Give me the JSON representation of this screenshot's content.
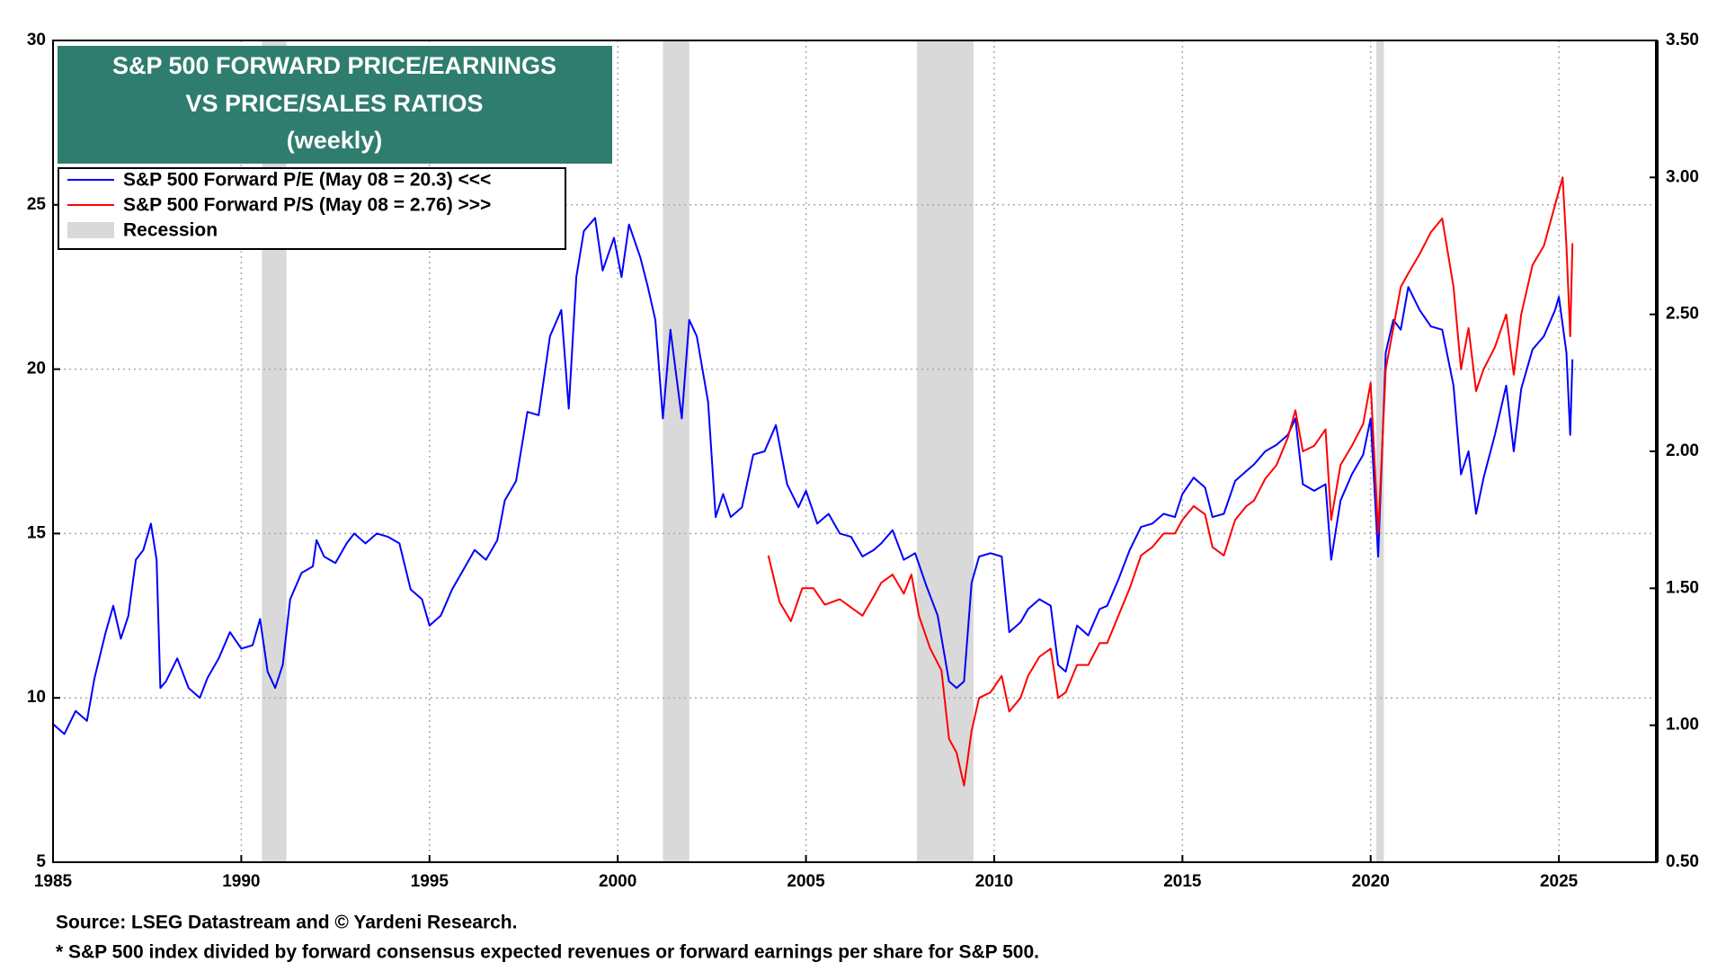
{
  "chart_data": {
    "type": "line",
    "title": [
      "S&P 500 FORWARD PRICE/EARNINGS",
      "VS PRICE/SALES RATIOS",
      "(weekly)"
    ],
    "xlim": [
      1985,
      2027.6
    ],
    "xticks": [
      1985,
      1990,
      1995,
      2000,
      2005,
      2010,
      2015,
      2020,
      2025
    ],
    "ylim": [
      5,
      30
    ],
    "yticks": [
      5,
      10,
      15,
      20,
      25,
      30
    ],
    "y2lim": [
      0.5,
      3.5
    ],
    "y2ticks": [
      {
        "value": 0.5,
        "label": "0.50"
      },
      {
        "value": 1,
        "label": "1.00"
      },
      {
        "value": 1.5,
        "label": "1.50"
      },
      {
        "value": 2,
        "label": "2.00"
      },
      {
        "value": 2.5,
        "label": "2.50"
      },
      {
        "value": 3,
        "label": "3.00"
      },
      {
        "value": 3.5,
        "label": "3.50"
      }
    ],
    "grid": true,
    "legend": "upper left",
    "series": [
      {
        "name": "S&P 500 Forward P/E (May 08 = 20.3) <<<",
        "color": "#0000ff",
        "axis": "y",
        "x": [
          1985.0,
          1985.3,
          1985.6,
          1985.9,
          1986.1,
          1986.4,
          1986.6,
          1986.8,
          1987.0,
          1987.2,
          1987.4,
          1987.6,
          1987.75,
          1987.85,
          1988.0,
          1988.3,
          1988.6,
          1988.9,
          1989.1,
          1989.4,
          1989.7,
          1990.0,
          1990.3,
          1990.5,
          1990.7,
          1990.9,
          1991.1,
          1991.3,
          1991.6,
          1991.9,
          1992.0,
          1992.2,
          1992.5,
          1992.8,
          1993.0,
          1993.3,
          1993.6,
          1993.9,
          1994.2,
          1994.5,
          1994.8,
          1995.0,
          1995.3,
          1995.6,
          1995.9,
          1996.2,
          1996.5,
          1996.8,
          1997.0,
          1997.3,
          1997.6,
          1997.9,
          1998.2,
          1998.5,
          1998.7,
          1998.9,
          1999.1,
          1999.4,
          1999.6,
          1999.9,
          2000.1,
          2000.3,
          2000.6,
          2000.8,
          2001.0,
          2001.2,
          2001.4,
          2001.7,
          2001.9,
          2002.1,
          2002.4,
          2002.6,
          2002.8,
          2003.0,
          2003.3,
          2003.6,
          2003.9,
          2004.2,
          2004.5,
          2004.8,
          2005.0,
          2005.3,
          2005.6,
          2005.9,
          2006.2,
          2006.5,
          2006.8,
          2007.0,
          2007.3,
          2007.6,
          2007.9,
          2008.2,
          2008.5,
          2008.8,
          2009.0,
          2009.2,
          2009.4,
          2009.6,
          2009.9,
          2010.2,
          2010.4,
          2010.7,
          2010.9,
          2011.2,
          2011.5,
          2011.7,
          2011.9,
          2012.2,
          2012.5,
          2012.8,
          2013.0,
          2013.3,
          2013.6,
          2013.9,
          2014.2,
          2014.5,
          2014.8,
          2015.0,
          2015.3,
          2015.6,
          2015.8,
          2016.1,
          2016.4,
          2016.7,
          2016.9,
          2017.2,
          2017.5,
          2017.8,
          2018.0,
          2018.2,
          2018.5,
          2018.8,
          2018.95,
          2019.2,
          2019.5,
          2019.8,
          2020.0,
          2020.2,
          2020.4,
          2020.6,
          2020.8,
          2021.0,
          2021.3,
          2021.6,
          2021.9,
          2022.2,
          2022.4,
          2022.6,
          2022.8,
          2023.0,
          2023.3,
          2023.6,
          2023.8,
          2024.0,
          2024.3,
          2024.6,
          2024.9,
          2025.0,
          2025.2,
          2025.3,
          2025.36
        ],
        "values": [
          9.2,
          8.9,
          9.6,
          9.3,
          10.6,
          12.0,
          12.8,
          11.8,
          12.5,
          14.2,
          14.5,
          15.3,
          14.2,
          10.3,
          10.5,
          11.2,
          10.3,
          10.0,
          10.6,
          11.2,
          12.0,
          11.5,
          11.6,
          12.4,
          10.8,
          10.3,
          11.0,
          13.0,
          13.8,
          14.0,
          14.8,
          14.3,
          14.1,
          14.7,
          15.0,
          14.7,
          15.0,
          14.9,
          14.7,
          13.3,
          13.0,
          12.2,
          12.5,
          13.3,
          13.9,
          14.5,
          14.2,
          14.8,
          16.0,
          16.6,
          18.7,
          18.6,
          21.0,
          21.8,
          18.8,
          22.8,
          24.2,
          24.6,
          23.0,
          24.0,
          22.8,
          24.4,
          23.4,
          22.5,
          21.5,
          18.5,
          21.2,
          18.5,
          21.5,
          21.0,
          19.0,
          15.5,
          16.2,
          15.5,
          15.8,
          17.4,
          17.5,
          18.3,
          16.5,
          15.8,
          16.3,
          15.3,
          15.6,
          15.0,
          14.9,
          14.3,
          14.5,
          14.7,
          15.1,
          14.2,
          14.4,
          13.4,
          12.5,
          10.5,
          10.3,
          10.5,
          13.5,
          14.3,
          14.4,
          14.3,
          12.0,
          12.3,
          12.7,
          13.0,
          12.8,
          11.0,
          10.8,
          12.2,
          11.9,
          12.7,
          12.8,
          13.6,
          14.5,
          15.2,
          15.3,
          15.6,
          15.5,
          16.2,
          16.7,
          16.4,
          15.5,
          15.6,
          16.6,
          16.9,
          17.1,
          17.5,
          17.7,
          18.0,
          18.5,
          16.5,
          16.3,
          16.5,
          14.2,
          16.0,
          16.8,
          17.4,
          18.5,
          14.3,
          20.5,
          21.5,
          21.2,
          22.5,
          21.8,
          21.3,
          21.2,
          19.5,
          16.8,
          17.5,
          15.6,
          16.7,
          18.0,
          19.5,
          17.5,
          19.4,
          20.6,
          21.0,
          21.8,
          22.2,
          20.5,
          18.0,
          20.3
        ]
      },
      {
        "name": "S&P 500 Forward P/S (May 08 = 2.76) >>>",
        "color": "#ff0000",
        "axis": "y2",
        "x": [
          2004.0,
          2004.3,
          2004.6,
          2004.9,
          2005.2,
          2005.5,
          2005.9,
          2006.2,
          2006.5,
          2006.8,
          2007.0,
          2007.3,
          2007.6,
          2007.8,
          2008.0,
          2008.3,
          2008.6,
          2008.8,
          2009.0,
          2009.2,
          2009.4,
          2009.6,
          2009.9,
          2010.2,
          2010.4,
          2010.7,
          2010.9,
          2011.2,
          2011.5,
          2011.7,
          2011.9,
          2012.2,
          2012.5,
          2012.8,
          2013.0,
          2013.3,
          2013.6,
          2013.9,
          2014.2,
          2014.5,
          2014.8,
          2015.0,
          2015.3,
          2015.6,
          2015.8,
          2016.1,
          2016.4,
          2016.7,
          2016.9,
          2017.2,
          2017.5,
          2017.8,
          2018.0,
          2018.2,
          2018.5,
          2018.8,
          2018.95,
          2019.2,
          2019.5,
          2019.8,
          2020.0,
          2020.2,
          2020.4,
          2020.6,
          2020.8,
          2021.0,
          2021.3,
          2021.6,
          2021.9,
          2022.2,
          2022.4,
          2022.6,
          2022.8,
          2023.0,
          2023.3,
          2023.6,
          2023.8,
          2024.0,
          2024.3,
          2024.6,
          2024.9,
          2025.1,
          2025.2,
          2025.3,
          2025.36
        ],
        "values": [
          1.62,
          1.45,
          1.38,
          1.5,
          1.5,
          1.44,
          1.46,
          1.43,
          1.4,
          1.47,
          1.52,
          1.55,
          1.48,
          1.55,
          1.4,
          1.28,
          1.2,
          0.95,
          0.9,
          0.78,
          0.98,
          1.1,
          1.12,
          1.18,
          1.05,
          1.1,
          1.18,
          1.25,
          1.28,
          1.1,
          1.12,
          1.22,
          1.22,
          1.3,
          1.3,
          1.4,
          1.5,
          1.62,
          1.65,
          1.7,
          1.7,
          1.75,
          1.8,
          1.77,
          1.65,
          1.62,
          1.75,
          1.8,
          1.82,
          1.9,
          1.95,
          2.05,
          2.15,
          2.0,
          2.02,
          2.08,
          1.75,
          1.95,
          2.02,
          2.1,
          2.25,
          1.7,
          2.3,
          2.45,
          2.6,
          2.65,
          2.72,
          2.8,
          2.85,
          2.6,
          2.3,
          2.45,
          2.22,
          2.3,
          2.38,
          2.5,
          2.28,
          2.5,
          2.68,
          2.75,
          2.9,
          3.0,
          2.75,
          2.42,
          2.76
        ]
      }
    ],
    "recession": {
      "name": "Recession",
      "color": "#d9d9d9",
      "ranges": [
        [
          1990.55,
          1991.2
        ],
        [
          2001.2,
          2001.9
        ],
        [
          2007.95,
          2009.45
        ],
        [
          2020.15,
          2020.35
        ]
      ]
    },
    "source": "Source: LSEG Datastream and © Yardeni Research.",
    "footnote": "* S&P 500 index divided by forward consensus expected revenues or forward earnings per share for S&P 500."
  }
}
